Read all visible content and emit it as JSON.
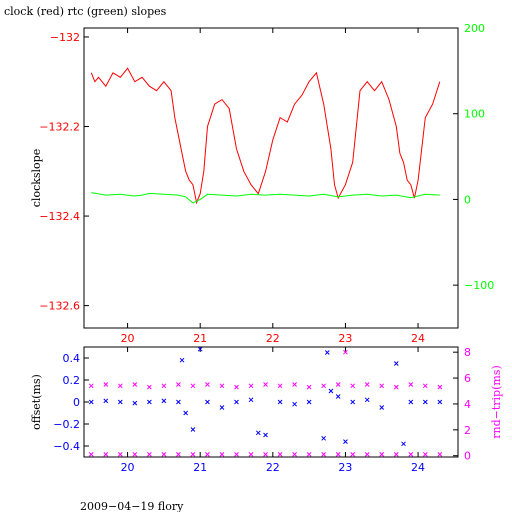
{
  "chart_data": [
    {
      "type": "line",
      "title": "clock (red) rtc (green) slopes",
      "ylabel": "clockslope",
      "x_range": [
        19.4,
        24.55
      ],
      "x_ticks": [
        20,
        21,
        22,
        23,
        24
      ],
      "left_axis": {
        "range": [
          -132.65,
          -131.98
        ],
        "ticks": [
          -132.0,
          -132.2,
          -132.4,
          -132.6
        ],
        "tick_labels": [
          "−132",
          "−132.2",
          "−132.4",
          "−132.6"
        ],
        "color": "#ff0000"
      },
      "right_axis": {
        "range": [
          -150,
          200
        ],
        "ticks": [
          200,
          100,
          0,
          -100
        ],
        "tick_labels": [
          "200",
          "100",
          "0",
          "−100"
        ],
        "color": "#00ff00"
      },
      "series": [
        {
          "color": "#ff0000",
          "axis": "left",
          "x": [
            19.5,
            19.55,
            19.6,
            19.7,
            19.8,
            19.9,
            20.0,
            20.1,
            20.2,
            20.3,
            20.4,
            20.5,
            20.6,
            20.65,
            20.7,
            20.75,
            20.8,
            20.85,
            20.9,
            20.95,
            21.0,
            21.05,
            21.1,
            21.2,
            21.3,
            21.4,
            21.5,
            21.6,
            21.7,
            21.8,
            21.9,
            22.0,
            22.1,
            22.2,
            22.3,
            22.4,
            22.5,
            22.6,
            22.7,
            22.8,
            22.85,
            22.9,
            23.0,
            23.1,
            23.2,
            23.3,
            23.4,
            23.5,
            23.6,
            23.7,
            23.75,
            23.8,
            23.85,
            23.9,
            23.95,
            24.0,
            24.05,
            24.1,
            24.2,
            24.3
          ],
          "y": [
            -132.08,
            -132.1,
            -132.09,
            -132.11,
            -132.08,
            -132.09,
            -132.07,
            -132.1,
            -132.09,
            -132.11,
            -132.12,
            -132.1,
            -132.12,
            -132.18,
            -132.22,
            -132.26,
            -132.3,
            -132.32,
            -132.33,
            -132.37,
            -132.35,
            -132.3,
            -132.2,
            -132.15,
            -132.14,
            -132.16,
            -132.25,
            -132.3,
            -132.33,
            -132.35,
            -132.3,
            -132.23,
            -132.18,
            -132.19,
            -132.15,
            -132.13,
            -132.1,
            -132.08,
            -132.15,
            -132.25,
            -132.33,
            -132.36,
            -132.33,
            -132.28,
            -132.12,
            -132.1,
            -132.12,
            -132.1,
            -132.14,
            -132.2,
            -132.26,
            -132.28,
            -132.32,
            -132.33,
            -132.36,
            -132.32,
            -132.25,
            -132.18,
            -132.15,
            -132.1
          ]
        },
        {
          "color": "#00ff00",
          "axis": "right",
          "x": [
            19.5,
            19.7,
            19.9,
            20.1,
            20.2,
            20.3,
            20.5,
            20.7,
            20.8,
            20.9,
            21.0,
            21.1,
            21.3,
            21.5,
            21.7,
            21.9,
            22.1,
            22.3,
            22.5,
            22.7,
            22.9,
            23.1,
            23.3,
            23.5,
            23.7,
            23.9,
            24.1,
            24.3
          ],
          "y": [
            8,
            5,
            6,
            4,
            5,
            7,
            6,
            5,
            3,
            -4,
            0,
            6,
            5,
            4,
            6,
            5,
            6,
            5,
            4,
            6,
            3,
            5,
            6,
            4,
            5,
            2,
            6,
            5
          ]
        }
      ]
    },
    {
      "type": "scatter",
      "xlabel": "",
      "ylabel": "offset(ms)",
      "ylabel_right": "rnd−trip(ms)",
      "x_range": [
        19.4,
        24.55
      ],
      "x_ticks": [
        20,
        21,
        22,
        23,
        24
      ],
      "left_axis": {
        "range": [
          -0.5,
          0.5
        ],
        "ticks": [
          0.4,
          0.2,
          0,
          -0.2,
          -0.4
        ],
        "tick_labels": [
          "0.4",
          "0.2",
          "0",
          "−0.2",
          "−0.4"
        ],
        "color": "#0000ff"
      },
      "right_axis": {
        "range": [
          -0.1,
          8.4
        ],
        "ticks": [
          8,
          6,
          4,
          2,
          0
        ],
        "tick_labels": [
          "8",
          "6",
          "4",
          "2",
          "0"
        ],
        "color": "#ff00ff"
      },
      "series": [
        {
          "color": "#0000ff",
          "axis": "left",
          "marker": "x",
          "x": [
            19.5,
            19.7,
            19.9,
            20.1,
            20.3,
            20.5,
            20.7,
            20.75,
            20.8,
            20.9,
            21.0,
            21.1,
            21.3,
            21.5,
            21.7,
            21.8,
            21.9,
            22.1,
            22.3,
            22.5,
            22.7,
            22.75,
            22.8,
            22.9,
            23.0,
            23.1,
            23.3,
            23.5,
            23.7,
            23.8,
            23.9,
            24.1,
            24.3
          ],
          "y": [
            0.0,
            0.01,
            0.0,
            -0.01,
            0.0,
            0.01,
            0.0,
            0.38,
            -0.1,
            -0.25,
            0.48,
            0.0,
            -0.05,
            0.0,
            0.02,
            -0.28,
            -0.3,
            0.0,
            -0.02,
            0.0,
            -0.33,
            0.45,
            0.1,
            0.05,
            -0.36,
            0.0,
            0.02,
            -0.05,
            0.35,
            -0.38,
            0.0,
            0.0,
            0.0
          ]
        },
        {
          "color": "#ff00ff",
          "axis": "right",
          "marker": "x",
          "x": [
            19.5,
            19.7,
            19.9,
            20.1,
            20.3,
            20.5,
            20.7,
            20.9,
            21.1,
            21.3,
            21.5,
            21.7,
            21.9,
            22.1,
            22.3,
            22.5,
            22.7,
            22.9,
            23.0,
            23.1,
            23.3,
            23.5,
            23.7,
            23.9,
            24.1,
            24.3
          ],
          "y": [
            5.4,
            5.5,
            5.4,
            5.5,
            5.3,
            5.4,
            5.5,
            5.4,
            5.5,
            5.4,
            5.3,
            5.4,
            5.5,
            5.4,
            5.5,
            5.3,
            5.4,
            5.5,
            8.0,
            5.4,
            5.5,
            5.4,
            5.3,
            5.5,
            5.4,
            5.3
          ]
        },
        {
          "color": "#ff00ff",
          "axis": "right",
          "marker": "x",
          "x": [
            19.5,
            19.7,
            19.9,
            20.1,
            20.3,
            20.5,
            20.7,
            20.9,
            21.1,
            21.3,
            21.5,
            21.7,
            21.9,
            22.1,
            22.3,
            22.5,
            22.7,
            22.9,
            23.1,
            23.3,
            23.5,
            23.7,
            23.9,
            24.1,
            24.3
          ],
          "y": [
            0.1,
            0.1,
            0.1,
            0.1,
            0.1,
            0.1,
            0.1,
            0.1,
            0.1,
            0.1,
            0.1,
            0.1,
            0.1,
            0.1,
            0.1,
            0.1,
            0.1,
            0.1,
            0.1,
            0.1,
            0.1,
            0.1,
            0.1,
            0.1,
            0.1
          ]
        }
      ]
    }
  ],
  "footer": "2009−04−19 flory"
}
